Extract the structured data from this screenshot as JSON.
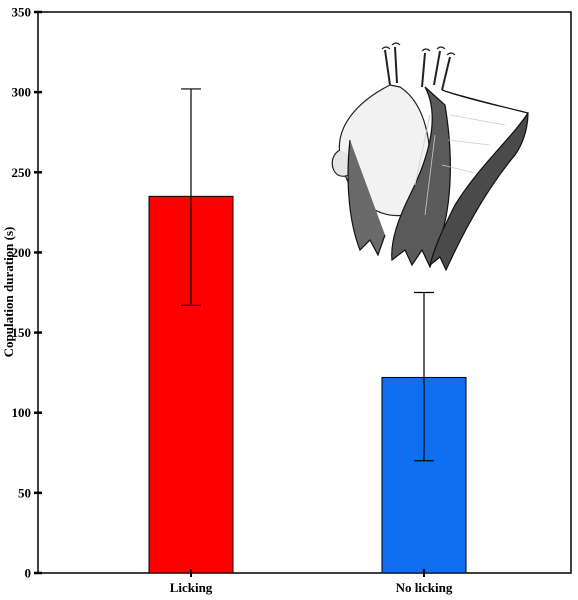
{
  "chart_data": {
    "type": "bar",
    "title": "",
    "xlabel": "",
    "ylabel": "Copulation duration (s)",
    "categories": [
      "Licking",
      "No licking"
    ],
    "values": [
      235,
      122
    ],
    "error_upper": [
      302,
      175
    ],
    "error_lower": [
      167,
      70
    ],
    "bar_colors": [
      "#ff0000",
      "#0f6ff0"
    ],
    "ylim": [
      0,
      350
    ],
    "yticks": [
      0,
      50,
      100,
      150,
      200,
      250,
      300,
      350
    ],
    "grid": false,
    "legend": "none",
    "illustration": "bat-illustration"
  }
}
